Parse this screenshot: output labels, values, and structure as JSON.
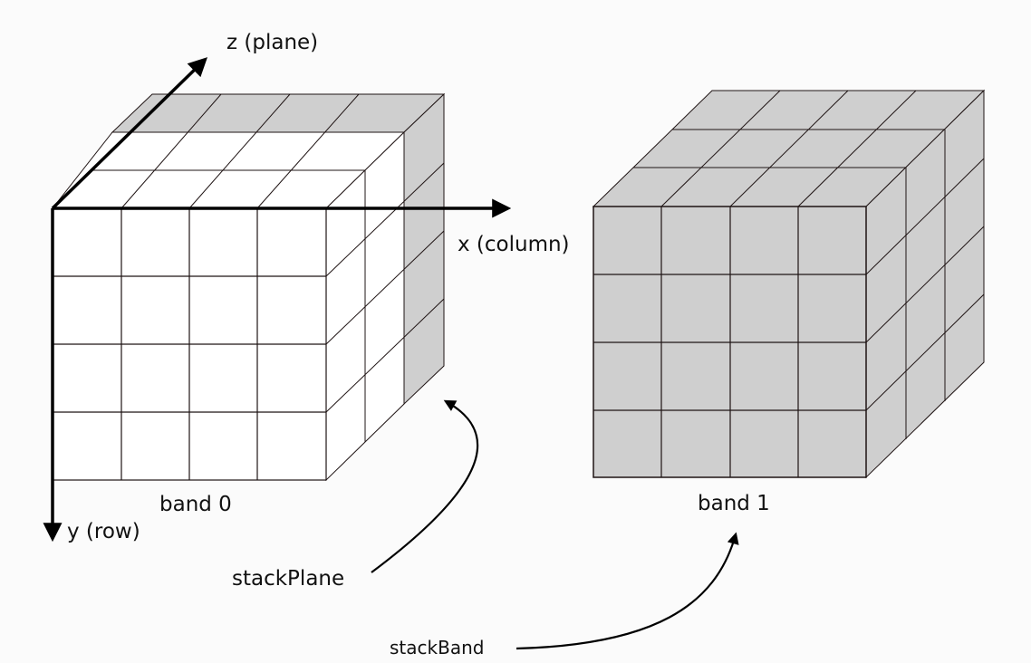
{
  "colors": {
    "background": "#fbfbfb",
    "band0_front": "#ffffff",
    "band0_back_face": "#cfcfcf",
    "band1_fill": "#cfcfcf",
    "grid_line": "#1f1414",
    "axis": "#000000"
  },
  "axes": {
    "z_label": "z (plane)",
    "x_label": "x (column)",
    "y_label": "y (row)"
  },
  "cubes": [
    {
      "label": "band 0",
      "grid": 4
    },
    {
      "label": "band 1",
      "grid": 4
    }
  ],
  "annotations": {
    "stack_plane": "stackPlane",
    "stack_band": "stackBand"
  }
}
